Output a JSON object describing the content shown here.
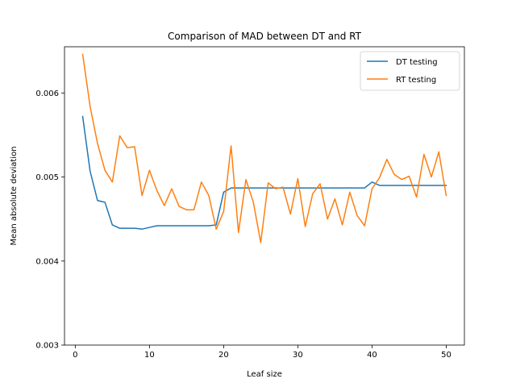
{
  "chart_data": {
    "type": "line",
    "title": "Comparison of MAD between DT and RT",
    "xlabel": "Leaf size",
    "ylabel": "Mean absolute deviation",
    "xlim": [
      -1.45,
      52.45
    ],
    "ylim": [
      0.003,
      0.00655
    ],
    "xticks": [
      0,
      10,
      20,
      30,
      40,
      50
    ],
    "xtick_labels": [
      "0",
      "10",
      "20",
      "30",
      "40",
      "50"
    ],
    "yticks": [
      0.003,
      0.004,
      0.005,
      0.006
    ],
    "ytick_labels": [
      "0.003",
      "0.004",
      "0.005",
      "0.006"
    ],
    "grid": false,
    "legend_position": "top-right",
    "x": [
      1,
      2,
      3,
      4,
      5,
      6,
      7,
      8,
      9,
      10,
      11,
      12,
      13,
      14,
      15,
      16,
      17,
      18,
      19,
      20,
      21,
      22,
      23,
      24,
      25,
      26,
      27,
      28,
      29,
      30,
      31,
      32,
      33,
      34,
      35,
      36,
      37,
      38,
      39,
      40,
      41,
      42,
      43,
      44,
      45,
      46,
      47,
      48,
      49,
      50
    ],
    "series": [
      {
        "name": "DT testing",
        "color": "#1f77b4",
        "values": [
          0.00572,
          0.00507,
          0.00472,
          0.0047,
          0.00443,
          0.00439,
          0.00439,
          0.00439,
          0.00438,
          0.0044,
          0.00442,
          0.00442,
          0.00442,
          0.00442,
          0.00442,
          0.00442,
          0.00442,
          0.00442,
          0.00443,
          0.00482,
          0.00487,
          0.00487,
          0.00487,
          0.00487,
          0.00487,
          0.00487,
          0.00487,
          0.00487,
          0.00487,
          0.00487,
          0.00487,
          0.00487,
          0.00487,
          0.00487,
          0.00487,
          0.00487,
          0.00487,
          0.00487,
          0.00487,
          0.00494,
          0.0049,
          0.0049,
          0.0049,
          0.0049,
          0.0049,
          0.0049,
          0.0049,
          0.0049,
          0.0049,
          0.0049
        ]
      },
      {
        "name": "RT testing",
        "color": "#ff7f0e",
        "values": [
          0.00646,
          0.00584,
          0.0054,
          0.00508,
          0.00494,
          0.00549,
          0.00535,
          0.00536,
          0.00478,
          0.00508,
          0.00484,
          0.00466,
          0.00486,
          0.00465,
          0.00461,
          0.00461,
          0.00494,
          0.00478,
          0.00438,
          0.00459,
          0.00537,
          0.00434,
          0.00497,
          0.0047,
          0.00422,
          0.00493,
          0.00486,
          0.00488,
          0.00456,
          0.00498,
          0.00441,
          0.0048,
          0.00492,
          0.0045,
          0.00474,
          0.00443,
          0.00482,
          0.00454,
          0.00442,
          0.00486,
          0.00499,
          0.00521,
          0.00503,
          0.00497,
          0.00501,
          0.00476,
          0.00527,
          0.005,
          0.0053,
          0.00478
        ]
      }
    ]
  }
}
